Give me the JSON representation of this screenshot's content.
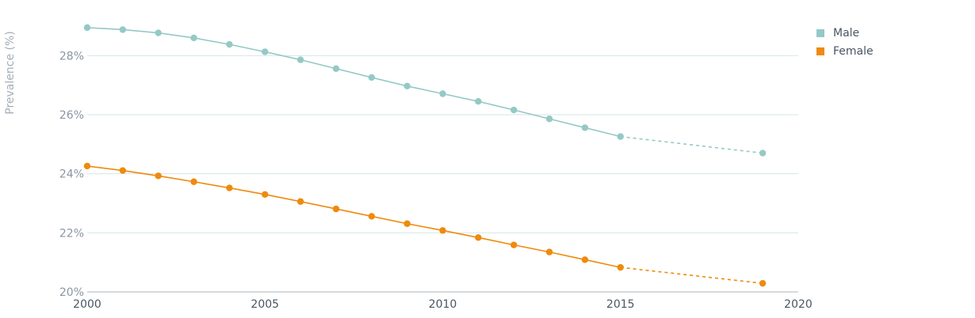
{
  "chart_data": {
    "type": "line",
    "title": "",
    "xlabel": "",
    "ylabel": "Prevalence (%)",
    "xlim": [
      2000,
      2020
    ],
    "ylim": [
      20,
      29
    ],
    "x_ticks": [
      2000,
      2005,
      2010,
      2015,
      2020
    ],
    "x_tick_labels": [
      "2000",
      "2005",
      "2010",
      "2015",
      "2020"
    ],
    "y_ticks": [
      20,
      22,
      24,
      26,
      28
    ],
    "y_tick_labels": [
      "20%",
      "22%",
      "24%",
      "26%",
      "28%"
    ],
    "grid": true,
    "legend_position": "top-right",
    "x": [
      2000,
      2001,
      2002,
      2003,
      2004,
      2005,
      2006,
      2007,
      2008,
      2009,
      2010,
      2011,
      2012,
      2013,
      2014,
      2015,
      2019
    ],
    "series": [
      {
        "name": "Male",
        "color": "#94c9c6",
        "values": [
          28.95,
          28.88,
          28.77,
          28.6,
          28.38,
          28.13,
          27.86,
          27.56,
          27.26,
          26.97,
          26.71,
          26.45,
          26.16,
          25.86,
          25.56,
          25.26,
          24.7
        ]
      },
      {
        "name": "Female",
        "color": "#ef8a0c",
        "values": [
          24.26,
          24.11,
          23.93,
          23.73,
          23.52,
          23.3,
          23.06,
          22.81,
          22.56,
          22.31,
          22.08,
          21.84,
          21.59,
          21.35,
          21.09,
          20.83,
          20.29
        ]
      }
    ],
    "projected_from": 2015,
    "gridline_color": "#d6e6e6"
  }
}
